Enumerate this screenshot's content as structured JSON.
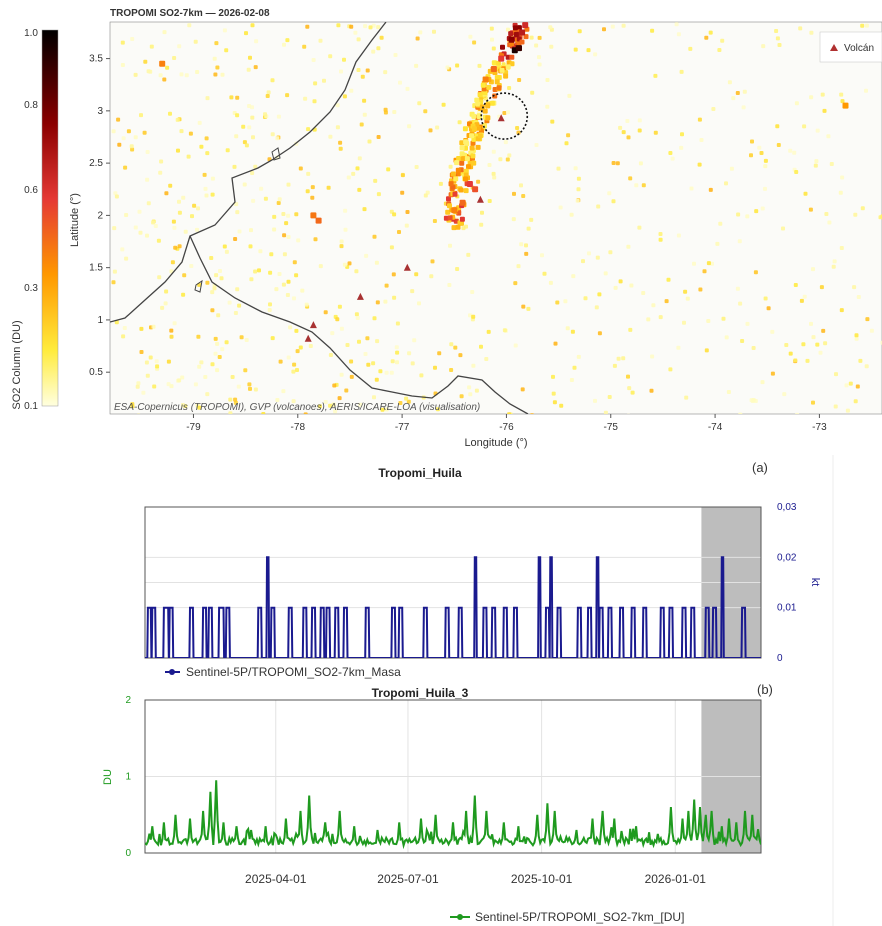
{
  "colorbar": {
    "label": "SO2 Column (DU)",
    "ticks": [
      "1.0",
      "0.8",
      "0.6",
      "0.3",
      "0.1"
    ]
  },
  "chart_data": [
    {
      "type": "scatter",
      "title": "TROPOMI SO2-7km — 2026-02-08",
      "xlabel": "Longitude (°)",
      "ylabel": "Latitude (°)",
      "xlim": [
        -79.8,
        -72.4
      ],
      "ylim": [
        0.1,
        3.85
      ],
      "x_ticks": [
        "-79",
        "-78",
        "-77",
        "-76",
        "-75",
        "-74",
        "-73"
      ],
      "y_ticks": [
        "0.5",
        "1",
        "1.5",
        "2",
        "2.5",
        "3",
        "3.5"
      ],
      "legend": {
        "label": "Volcán",
        "placement": "top-right"
      },
      "credit": "ESA-Copernicus (TROPOMI), GVP (volcanoes), AERIS/ICARE-LOA (visualisation)",
      "volcanoes": [
        {
          "lon": -76.05,
          "lat": 2.93
        },
        {
          "lon": -76.95,
          "lat": 1.5
        },
        {
          "lon": -77.4,
          "lat": 1.22
        },
        {
          "lon": -77.85,
          "lat": 0.95
        },
        {
          "lon": -77.9,
          "lat": 0.82
        },
        {
          "lon": -76.25,
          "lat": 2.15
        }
      ],
      "highlight_circle": {
        "lon": -76.02,
        "lat": 2.95
      },
      "plume": [
        {
          "lon": -75.92,
          "lat": 3.58,
          "v": 0.95
        },
        {
          "lon": -75.88,
          "lat": 3.6,
          "v": 0.9
        },
        {
          "lon": -75.95,
          "lat": 3.68,
          "v": 0.75
        },
        {
          "lon": -75.85,
          "lat": 3.75,
          "v": 0.65
        },
        {
          "lon": -75.82,
          "lat": 3.82,
          "v": 0.6
        },
        {
          "lon": -76.05,
          "lat": 3.5,
          "v": 0.55
        },
        {
          "lon": -76.12,
          "lat": 3.4,
          "v": 0.45
        },
        {
          "lon": -76.2,
          "lat": 3.3,
          "v": 0.4
        },
        {
          "lon": -76.35,
          "lat": 2.3,
          "v": 0.55
        },
        {
          "lon": -76.3,
          "lat": 2.25,
          "v": 0.5
        },
        {
          "lon": -76.42,
          "lat": 2.12,
          "v": 0.45
        },
        {
          "lon": -76.5,
          "lat": 2.05,
          "v": 0.4
        },
        {
          "lon": -77.85,
          "lat": 2.0,
          "v": 0.42
        },
        {
          "lon": -77.8,
          "lat": 1.95,
          "v": 0.45
        },
        {
          "lon": -79.3,
          "lat": 3.45,
          "v": 0.4
        },
        {
          "lon": -72.75,
          "lat": 3.05,
          "v": 0.35
        }
      ]
    },
    {
      "type": "line",
      "title": "Tropomi_Huila",
      "panel_label": "(a)",
      "ylabel": "kt",
      "ylim": [
        0,
        0.03
      ],
      "y_ticks": [
        "0",
        "0,01",
        "0,02",
        "0,03"
      ],
      "x_range": [
        "2025-01-01",
        "2026-03-01"
      ],
      "shaded_from": "2026-01-19",
      "series": [
        {
          "name": "Sentinel-5P/TROPOMI_SO2-7km_Masa",
          "color": "#1a1a8f",
          "events": [
            {
              "date": "2025-01-03",
              "value": 0.01,
              "days": 2
            },
            {
              "date": "2025-01-06",
              "value": 0.01,
              "days": 2
            },
            {
              "date": "2025-01-14",
              "value": 0.01,
              "days": 3
            },
            {
              "date": "2025-01-18",
              "value": 0.01,
              "days": 2
            },
            {
              "date": "2025-02-01",
              "value": 0.01,
              "days": 2
            },
            {
              "date": "2025-02-10",
              "value": 0.01,
              "days": 2
            },
            {
              "date": "2025-02-14",
              "value": 0.01,
              "days": 2
            },
            {
              "date": "2025-02-21",
              "value": 0.01,
              "days": 3
            },
            {
              "date": "2025-02-26",
              "value": 0.01,
              "days": 2
            },
            {
              "date": "2025-03-20",
              "value": 0.01,
              "days": 2
            },
            {
              "date": "2025-03-26",
              "value": 0.02,
              "days": 1
            },
            {
              "date": "2025-03-29",
              "value": 0.01,
              "days": 2
            },
            {
              "date": "2025-04-10",
              "value": 0.01,
              "days": 2
            },
            {
              "date": "2025-04-20",
              "value": 0.01,
              "days": 2
            },
            {
              "date": "2025-04-26",
              "value": 0.01,
              "days": 2
            },
            {
              "date": "2025-05-02",
              "value": 0.01,
              "days": 2
            },
            {
              "date": "2025-05-06",
              "value": 0.01,
              "days": 2
            },
            {
              "date": "2025-05-12",
              "value": 0.01,
              "days": 2
            },
            {
              "date": "2025-05-18",
              "value": 0.01,
              "days": 2
            },
            {
              "date": "2025-06-02",
              "value": 0.01,
              "days": 2
            },
            {
              "date": "2025-06-20",
              "value": 0.01,
              "days": 2
            },
            {
              "date": "2025-06-25",
              "value": 0.01,
              "days": 2
            },
            {
              "date": "2025-07-12",
              "value": 0.01,
              "days": 2
            },
            {
              "date": "2025-07-27",
              "value": 0.01,
              "days": 2
            },
            {
              "date": "2025-08-05",
              "value": 0.01,
              "days": 2
            },
            {
              "date": "2025-08-16",
              "value": 0.02,
              "days": 1
            },
            {
              "date": "2025-08-22",
              "value": 0.01,
              "days": 2
            },
            {
              "date": "2025-08-28",
              "value": 0.01,
              "days": 2
            },
            {
              "date": "2025-09-05",
              "value": 0.01,
              "days": 2
            },
            {
              "date": "2025-09-12",
              "value": 0.01,
              "days": 2
            },
            {
              "date": "2025-09-29",
              "value": 0.02,
              "days": 1
            },
            {
              "date": "2025-10-04",
              "value": 0.01,
              "days": 2
            },
            {
              "date": "2025-10-07",
              "value": 0.02,
              "days": 1
            },
            {
              "date": "2025-10-12",
              "value": 0.01,
              "days": 2
            },
            {
              "date": "2025-10-26",
              "value": 0.01,
              "days": 2
            },
            {
              "date": "2025-11-02",
              "value": 0.01,
              "days": 2
            },
            {
              "date": "2025-11-08",
              "value": 0.02,
              "days": 1
            },
            {
              "date": "2025-11-10",
              "value": 0.01,
              "days": 2
            },
            {
              "date": "2025-11-16",
              "value": 0.01,
              "days": 2
            },
            {
              "date": "2025-11-24",
              "value": 0.01,
              "days": 2
            },
            {
              "date": "2025-12-02",
              "value": 0.01,
              "days": 2
            },
            {
              "date": "2025-12-10",
              "value": 0.01,
              "days": 2
            },
            {
              "date": "2025-12-22",
              "value": 0.01,
              "days": 2
            },
            {
              "date": "2025-12-28",
              "value": 0.01,
              "days": 2
            },
            {
              "date": "2026-01-06",
              "value": 0.01,
              "days": 2
            },
            {
              "date": "2026-01-12",
              "value": 0.01,
              "days": 2
            },
            {
              "date": "2026-01-22",
              "value": 0.01,
              "days": 2
            },
            {
              "date": "2026-01-27",
              "value": 0.01,
              "days": 2
            },
            {
              "date": "2026-02-02",
              "value": 0.02,
              "days": 1
            },
            {
              "date": "2026-02-16",
              "value": 0.01,
              "days": 2
            }
          ]
        }
      ]
    },
    {
      "type": "line",
      "title": "Tropomi_Huila_3",
      "panel_label": "(b)",
      "ylabel": "DU",
      "ylim": [
        0,
        2
      ],
      "y_ticks": [
        "0",
        "1",
        "2"
      ],
      "x_range": [
        "2025-01-01",
        "2026-03-01"
      ],
      "x_ticks": [
        "2025-04-01",
        "2025-07-01",
        "2025-10-01",
        "2026-01-01"
      ],
      "shaded_from": "2026-01-19",
      "series": [
        {
          "name": "Sentinel-5P/TROPOMI_SO2-7km_[DU]",
          "color": "#1f9a1f",
          "baseline": 0.15,
          "peaks": [
            {
              "date": "2025-01-06",
              "value": 0.35
            },
            {
              "date": "2025-01-14",
              "value": 0.4
            },
            {
              "date": "2025-01-22",
              "value": 0.5
            },
            {
              "date": "2025-02-01",
              "value": 0.45
            },
            {
              "date": "2025-02-10",
              "value": 0.55
            },
            {
              "date": "2025-02-15",
              "value": 0.8
            },
            {
              "date": "2025-02-19",
              "value": 0.95
            },
            {
              "date": "2025-02-24",
              "value": 0.4
            },
            {
              "date": "2025-03-05",
              "value": 0.35
            },
            {
              "date": "2025-03-15",
              "value": 0.3
            },
            {
              "date": "2025-03-25",
              "value": 0.35
            },
            {
              "date": "2025-04-08",
              "value": 0.45
            },
            {
              "date": "2025-04-18",
              "value": 0.55
            },
            {
              "date": "2025-04-24",
              "value": 0.75
            },
            {
              "date": "2025-05-05",
              "value": 0.4
            },
            {
              "date": "2025-05-15",
              "value": 0.55
            },
            {
              "date": "2025-05-25",
              "value": 0.35
            },
            {
              "date": "2025-06-10",
              "value": 0.3
            },
            {
              "date": "2025-06-25",
              "value": 0.4
            },
            {
              "date": "2025-07-10",
              "value": 0.45
            },
            {
              "date": "2025-07-20",
              "value": 0.5
            },
            {
              "date": "2025-08-01",
              "value": 0.4
            },
            {
              "date": "2025-08-10",
              "value": 0.55
            },
            {
              "date": "2025-08-16",
              "value": 0.75
            },
            {
              "date": "2025-08-24",
              "value": 0.55
            },
            {
              "date": "2025-09-05",
              "value": 0.4
            },
            {
              "date": "2025-09-15",
              "value": 0.35
            },
            {
              "date": "2025-09-28",
              "value": 0.5
            },
            {
              "date": "2025-10-05",
              "value": 0.65
            },
            {
              "date": "2025-10-10",
              "value": 0.55
            },
            {
              "date": "2025-10-25",
              "value": 0.3
            },
            {
              "date": "2025-11-05",
              "value": 0.45
            },
            {
              "date": "2025-11-12",
              "value": 0.55
            },
            {
              "date": "2025-11-20",
              "value": 0.45
            },
            {
              "date": "2025-12-05",
              "value": 0.35
            },
            {
              "date": "2025-12-20",
              "value": 0.25
            },
            {
              "date": "2025-12-29",
              "value": 0.6
            },
            {
              "date": "2026-01-06",
              "value": 0.45
            },
            {
              "date": "2026-01-10",
              "value": 0.55
            },
            {
              "date": "2026-01-14",
              "value": 0.7
            },
            {
              "date": "2026-01-18",
              "value": 0.6
            },
            {
              "date": "2026-01-22",
              "value": 0.5
            },
            {
              "date": "2026-01-26",
              "value": 0.55
            },
            {
              "date": "2026-02-02",
              "value": 0.35
            },
            {
              "date": "2026-02-07",
              "value": 0.45
            },
            {
              "date": "2026-02-12",
              "value": 0.4
            },
            {
              "date": "2026-02-18",
              "value": 0.55
            },
            {
              "date": "2026-02-23",
              "value": 0.5
            }
          ]
        }
      ]
    }
  ]
}
